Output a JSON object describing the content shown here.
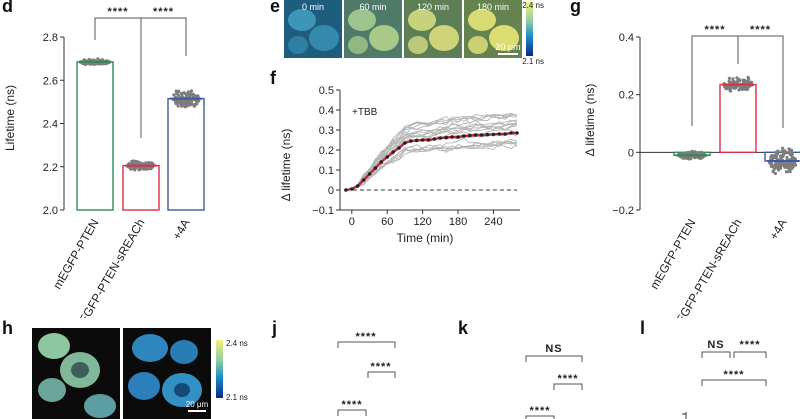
{
  "panel_labels": {
    "d": "d",
    "e": "e",
    "f": "f",
    "g": "g",
    "h": "h",
    "j": "j",
    "k": "k",
    "l": "l"
  },
  "colors": {
    "pten": "#2e8b57",
    "sreach": "#d9304a",
    "plus4a": "#3d5aa8",
    "dots": "#7d7d7d",
    "tbb_mean": "#c8253b",
    "traces": "#b5b5b5"
  },
  "chart_data": [
    {
      "id": "d",
      "type": "bar",
      "categories": [
        "mEGFP-PTEN",
        "mEGFP-PTEN-sREACh",
        "+4A"
      ],
      "values": [
        2.685,
        2.205,
        2.515
      ],
      "ylabel": "Lifetime (ns)",
      "ylim": [
        2.0,
        2.8
      ],
      "yticks": [
        "2.0",
        "2.2",
        "2.4",
        "2.6",
        "2.8"
      ],
      "significance": [
        {
          "pair": [
            0,
            1
          ],
          "label": "****"
        },
        {
          "pair": [
            1,
            2
          ],
          "label": "****"
        }
      ]
    },
    {
      "id": "f",
      "type": "line",
      "annotation": "+TBB",
      "xlabel": "Time (min)",
      "ylabel": "Δ lifetime (ns)",
      "xlim": [
        -20,
        285
      ],
      "ylim": [
        -0.1,
        0.5
      ],
      "xticks": [
        "0",
        "60",
        "120",
        "180",
        "240"
      ],
      "yticks": [
        "−0.1",
        "0",
        "0.1",
        "0.2",
        "0.3",
        "0.4",
        "0.5"
      ],
      "mean": {
        "x": [
          -10,
          0,
          10,
          20,
          30,
          40,
          50,
          60,
          70,
          80,
          90,
          100,
          110,
          120,
          130,
          140,
          150,
          160,
          170,
          180,
          190,
          200,
          210,
          220,
          230,
          240,
          250,
          260,
          270,
          280
        ],
        "y": [
          0,
          0.005,
          0.02,
          0.05,
          0.08,
          0.11,
          0.14,
          0.165,
          0.19,
          0.21,
          0.235,
          0.245,
          0.248,
          0.25,
          0.25,
          0.255,
          0.26,
          0.262,
          0.265,
          0.265,
          0.27,
          0.272,
          0.275,
          0.275,
          0.277,
          0.278,
          0.28,
          0.28,
          0.285,
          0.285
        ]
      }
    },
    {
      "id": "g",
      "type": "bar",
      "categories": [
        "mEGFP-PTEN",
        "mEGFP-PTEN-sREACh",
        "+4A"
      ],
      "values": [
        -0.01,
        0.235,
        -0.03
      ],
      "ylabel": "Δ lifetime (ns)",
      "ylim": [
        -0.2,
        0.4
      ],
      "yticks": [
        "−0.2",
        "0",
        "0.2",
        "0.4"
      ],
      "significance": [
        {
          "pair": [
            0,
            1
          ],
          "label": "****"
        },
        {
          "pair": [
            1,
            2
          ],
          "label": "****"
        }
      ]
    },
    {
      "id": "j",
      "type": "bar",
      "significance": [
        {
          "label": "****"
        },
        {
          "label": "****"
        },
        {
          "label": "****"
        }
      ]
    },
    {
      "id": "k",
      "type": "bar",
      "significance": [
        {
          "label": "NS"
        },
        {
          "label": "****"
        },
        {
          "label": "****"
        }
      ]
    },
    {
      "id": "l",
      "type": "bar",
      "significance": [
        {
          "label": "NS"
        },
        {
          "label": "****"
        },
        {
          "label": "****"
        }
      ]
    }
  ],
  "panel_e": {
    "times": [
      "0 min",
      "60 min",
      "120 min",
      "180 min"
    ],
    "scale_top": "2.4 ns",
    "scale_bottom": "2.1 ns",
    "scalebar": "20 μm"
  },
  "panel_h": {
    "scale_top": "2.4 ns",
    "scale_bottom": "2.1 ns",
    "scalebar": "20 μm"
  }
}
